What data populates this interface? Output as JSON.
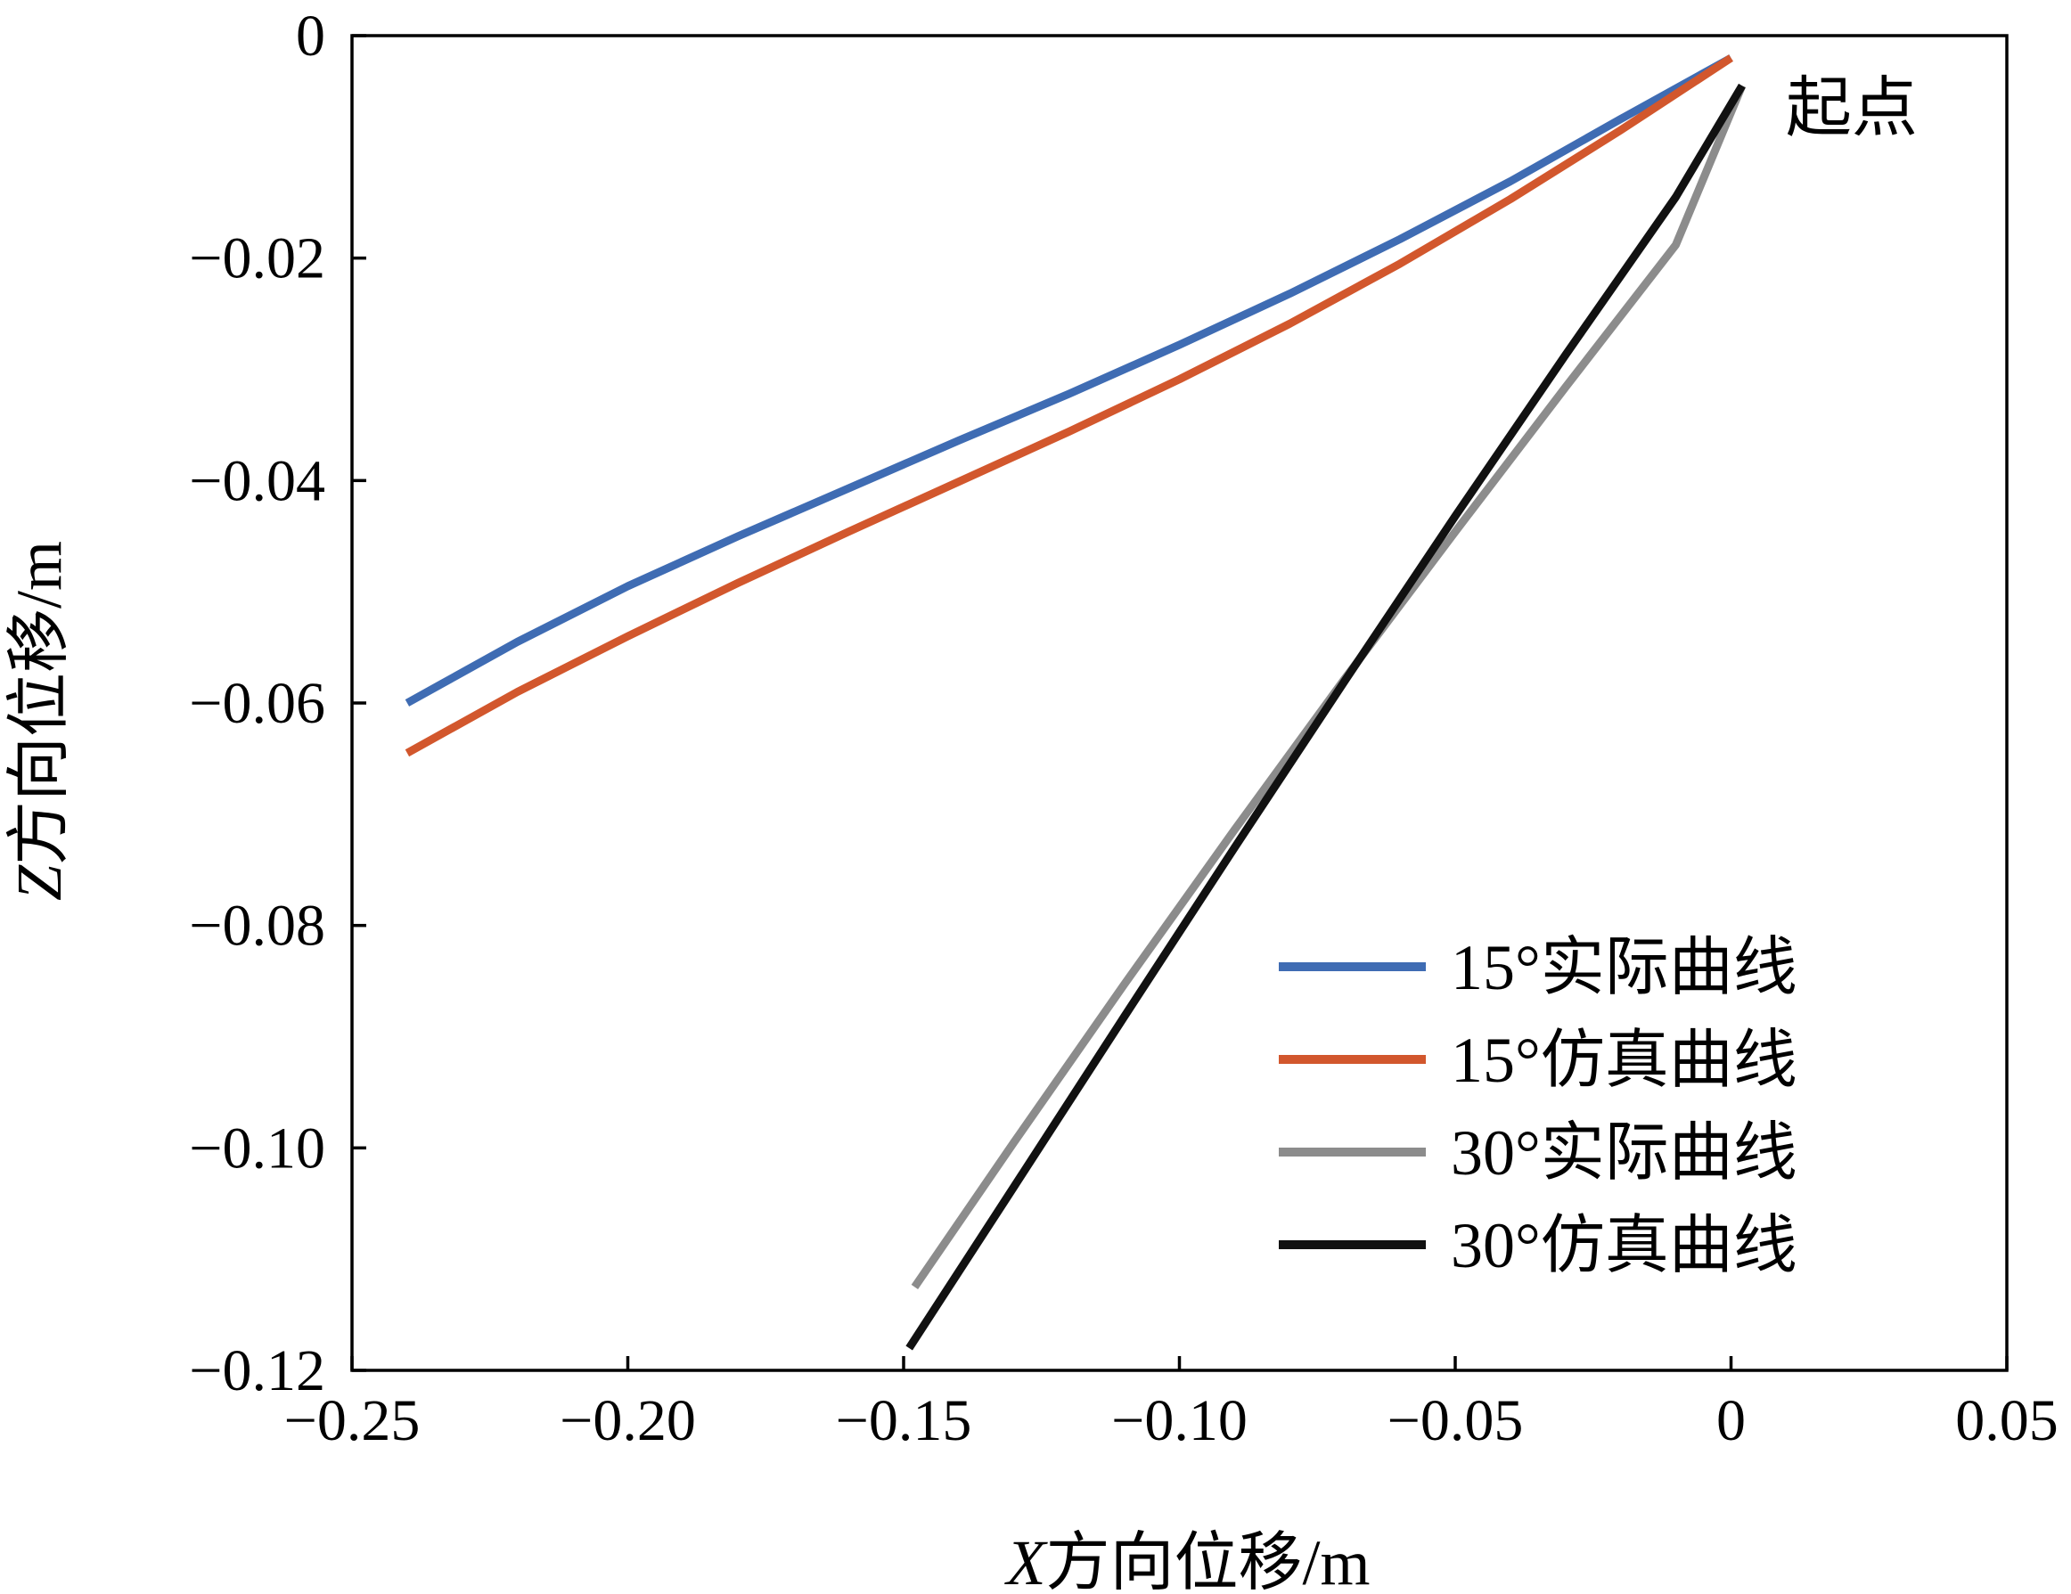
{
  "chart_data": {
    "type": "line",
    "title": "",
    "xlabel": {
      "var": "X",
      "text": "方向位移/m"
    },
    "ylabel": {
      "var": "Z",
      "text": "方向位移/m"
    },
    "xlim": [
      -0.25,
      0.05
    ],
    "ylim": [
      -0.12,
      0
    ],
    "xticks": [
      -0.25,
      -0.2,
      -0.15,
      -0.1,
      -0.05,
      0,
      0.05
    ],
    "xtick_labels": [
      "−0.25",
      "−0.20",
      "−0.15",
      "−0.10",
      "−0.05",
      "0",
      "0.05"
    ],
    "yticks": [
      0,
      -0.02,
      -0.04,
      -0.06,
      -0.08,
      -0.1,
      -0.12
    ],
    "ytick_labels": [
      "0",
      "−0.02",
      "−0.04",
      "−0.06",
      "−0.08",
      "−0.10",
      "−0.12"
    ],
    "grid": false,
    "legend_position": "bottom-right",
    "annotations": [
      {
        "text": "起点",
        "x": 0.007,
        "y": -0.0065
      }
    ],
    "series": [
      {
        "name": "15°实际曲线",
        "color": "#3f6cb3",
        "x": [
          -0.24,
          -0.22,
          -0.2,
          -0.18,
          -0.16,
          -0.14,
          -0.12,
          -0.1,
          -0.08,
          -0.06,
          -0.04,
          -0.02,
          0.0
        ],
        "y": [
          -0.06,
          -0.0545,
          -0.0495,
          -0.045,
          -0.0407,
          -0.0364,
          -0.0322,
          -0.0278,
          -0.0232,
          -0.0183,
          -0.0131,
          -0.0075,
          -0.002
        ]
      },
      {
        "name": "15°仿真曲线",
        "color": "#d2572d",
        "x": [
          -0.24,
          -0.22,
          -0.2,
          -0.18,
          -0.16,
          -0.14,
          -0.12,
          -0.1,
          -0.08,
          -0.06,
          -0.04,
          -0.02,
          0.0
        ],
        "y": [
          -0.0645,
          -0.059,
          -0.054,
          -0.0492,
          -0.0446,
          -0.0401,
          -0.0356,
          -0.0309,
          -0.0259,
          -0.0205,
          -0.0147,
          -0.0085,
          -0.002
        ]
      },
      {
        "name": "30°实际曲线",
        "color": "#8c8c8c",
        "x": [
          -0.148,
          -0.13,
          -0.11,
          -0.09,
          -0.07,
          -0.05,
          -0.03,
          -0.01,
          0.002
        ],
        "y": [
          -0.1125,
          -0.0995,
          -0.0853,
          -0.0714,
          -0.0578,
          -0.0446,
          -0.0316,
          -0.0188,
          -0.0045
        ]
      },
      {
        "name": "30°仿真曲线",
        "color": "#111111",
        "x": [
          -0.149,
          -0.13,
          -0.11,
          -0.09,
          -0.07,
          -0.05,
          -0.03,
          -0.01,
          0.002
        ],
        "y": [
          -0.118,
          -0.1035,
          -0.0882,
          -0.073,
          -0.058,
          -0.0432,
          -0.0287,
          -0.0145,
          -0.0045
        ]
      }
    ]
  }
}
